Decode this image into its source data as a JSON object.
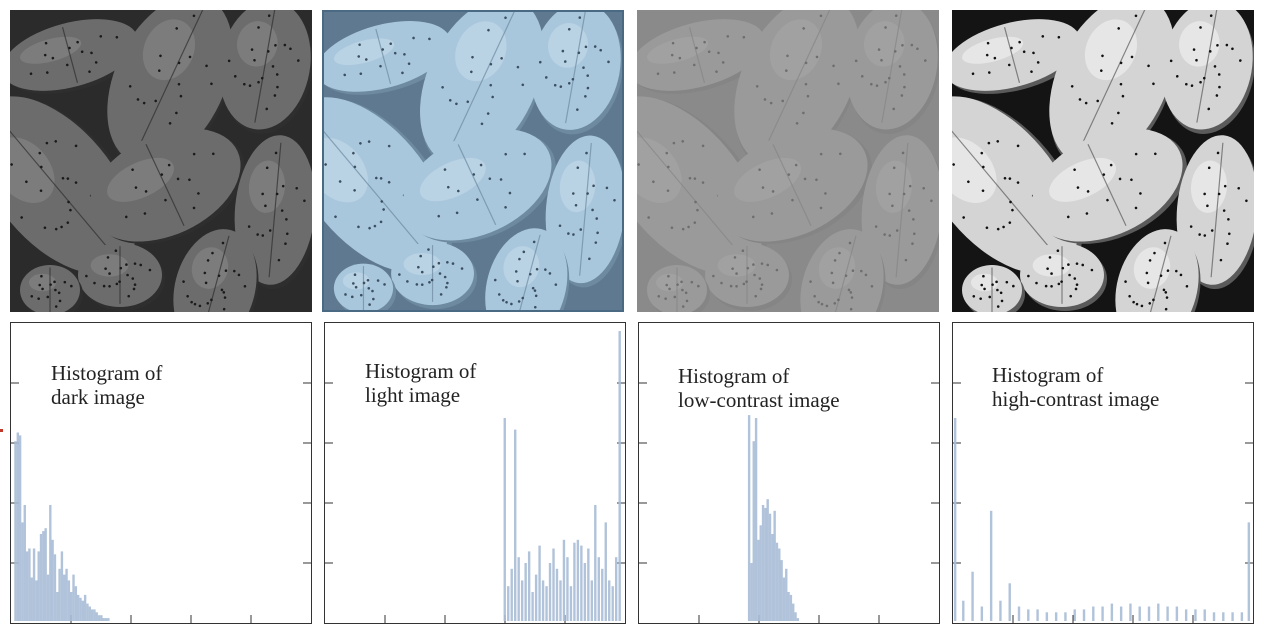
{
  "panels": [
    {
      "id": "dark",
      "label_line1": "Histogram of",
      "label_line2": "dark image",
      "tone": {
        "cell": "#6c6c6c",
        "shade": "#2e2e2e",
        "bg": "#2b2b2b",
        "dot": "#1a1a1a",
        "highlight": "#8a8a8a"
      }
    },
    {
      "id": "light",
      "label_line1": "Histogram of",
      "label_line2": "light image",
      "tone": {
        "cell": "#a8c6dc",
        "shade": "#6d8aa0",
        "bg": "#5f7a90",
        "dot": "#3b4f60",
        "highlight": "#c6dceb"
      }
    },
    {
      "id": "low-contrast",
      "label_line1": "Histogram of",
      "label_line2": "low-contrast image",
      "tone": {
        "cell": "#9a9a9a",
        "shade": "#858585",
        "bg": "#8a8a8a",
        "dot": "#6e6e6e",
        "highlight": "#a8a8a8"
      }
    },
    {
      "id": "high-contrast",
      "label_line1": "Histogram of",
      "label_line2": "high-contrast image",
      "tone": {
        "cell": "#d4d4d4",
        "shade": "#5a5a5a",
        "bg": "#141414",
        "dot": "#111111",
        "highlight": "#f4f4f4"
      }
    }
  ],
  "chart_data": [
    {
      "type": "bar",
      "x": [
        3,
        5,
        7,
        9,
        11,
        13,
        15,
        17,
        19,
        21,
        23,
        25,
        27,
        29,
        31,
        33,
        35,
        37,
        39,
        41,
        43,
        45,
        47,
        49,
        51,
        53,
        55,
        57,
        59,
        61,
        63,
        65,
        67,
        69,
        71,
        73,
        75,
        77,
        79,
        81,
        83,
        85
      ],
      "values": [
        62,
        65,
        64,
        34,
        40,
        24,
        25,
        15,
        25,
        14,
        24,
        30,
        31,
        32,
        16,
        40,
        28,
        23,
        10,
        18,
        24,
        16,
        18,
        14,
        10,
        16,
        12,
        9,
        8,
        7,
        9,
        6,
        5,
        4,
        4,
        3,
        2,
        2,
        1,
        1,
        1,
        0
      ],
      "xlim": [
        0,
        255
      ],
      "ylim": [
        0,
        100
      ]
    },
    {
      "type": "bar",
      "x": [
        154,
        157,
        160,
        163,
        166,
        169,
        172,
        175,
        178,
        181,
        184,
        187,
        190,
        193,
        196,
        199,
        202,
        205,
        208,
        211,
        214,
        217,
        220,
        223,
        226,
        229,
        232,
        235,
        238,
        241,
        244,
        247,
        250,
        253
      ],
      "values": [
        70,
        12,
        18,
        66,
        22,
        14,
        20,
        24,
        10,
        16,
        26,
        14,
        12,
        20,
        25,
        18,
        14,
        28,
        22,
        12,
        27,
        28,
        26,
        20,
        25,
        14,
        40,
        22,
        18,
        34,
        14,
        12,
        22,
        100
      ],
      "xlim": [
        0,
        255
      ],
      "ylim": [
        0,
        100
      ]
    },
    {
      "type": "bar",
      "x": [
        94,
        96,
        98,
        100,
        102,
        104,
        106,
        108,
        110,
        112,
        114,
        116,
        118,
        120,
        122,
        124,
        126,
        128,
        130,
        132,
        134,
        136
      ],
      "values": [
        71,
        20,
        62,
        70,
        28,
        33,
        40,
        39,
        42,
        37,
        30,
        38,
        27,
        25,
        21,
        15,
        18,
        10,
        9,
        6,
        3,
        1
      ],
      "xlim": [
        0,
        255
      ],
      "ylim": [
        0,
        100
      ]
    },
    {
      "type": "bar",
      "x": [
        1,
        8,
        16,
        24,
        32,
        40,
        48,
        56,
        64,
        72,
        80,
        88,
        96,
        104,
        112,
        120,
        128,
        136,
        144,
        152,
        160,
        168,
        176,
        184,
        192,
        200,
        208,
        216,
        224,
        232,
        240,
        248,
        254
      ],
      "values": [
        70,
        7,
        17,
        5,
        38,
        7,
        13,
        5,
        4,
        4,
        3,
        3,
        3,
        4,
        4,
        5,
        5,
        6,
        5,
        6,
        5,
        5,
        6,
        5,
        5,
        4,
        4,
        4,
        3,
        3,
        3,
        3,
        34
      ],
      "xlim": [
        0,
        255
      ],
      "ylim": [
        0,
        100
      ]
    }
  ]
}
